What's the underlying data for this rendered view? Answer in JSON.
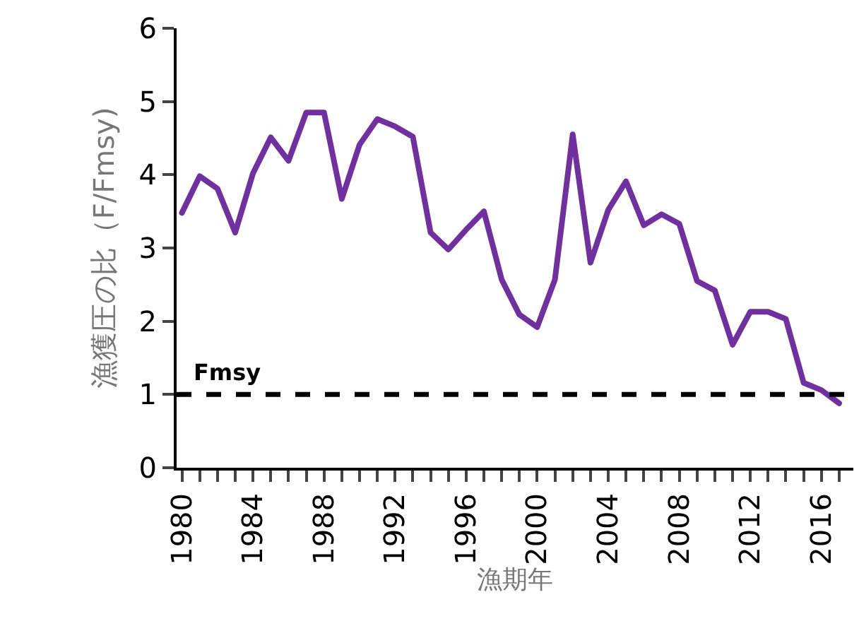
{
  "chart_data": {
    "type": "line",
    "xlabel": "漁期年",
    "ylabel": "漁獲圧の比（F/Fmsy)",
    "x": [
      1980,
      1981,
      1982,
      1983,
      1984,
      1985,
      1986,
      1987,
      1988,
      1989,
      1990,
      1991,
      1992,
      1993,
      1994,
      1995,
      1996,
      1997,
      1998,
      1999,
      2000,
      2001,
      2002,
      2003,
      2004,
      2005,
      2006,
      2007,
      2008,
      2009,
      2010,
      2011,
      2012,
      2013,
      2014,
      2015,
      2016,
      2017
    ],
    "series": [
      {
        "color": "#7030a0",
        "values": [
          3.48,
          3.98,
          3.81,
          3.21,
          4.02,
          4.51,
          4.19,
          4.85,
          4.85,
          3.67,
          4.41,
          4.76,
          4.66,
          4.52,
          3.21,
          2.98,
          3.25,
          3.5,
          2.57,
          2.09,
          1.92,
          2.57,
          4.55,
          2.8,
          3.52,
          3.91,
          3.31,
          3.46,
          3.33,
          2.55,
          2.42,
          1.68,
          2.13,
          2.13,
          2.03,
          1.16,
          1.06,
          0.88
        ]
      }
    ],
    "xlim": [
      1979.7,
      2017.8
    ],
    "ylim": [
      0,
      6
    ],
    "yticks": [
      0,
      1,
      2,
      3,
      4,
      5,
      6
    ],
    "xticks": [
      1980,
      {
        "value": 1981,
        "label": null
      },
      {
        "value": 1982,
        "label": null
      },
      {
        "value": 1983,
        "label": null
      },
      1984,
      {
        "value": 1985,
        "label": null
      },
      {
        "value": 1986,
        "label": null
      },
      {
        "value": 1987,
        "label": null
      },
      1988,
      {
        "value": 1989,
        "label": null
      },
      {
        "value": 1990,
        "label": null
      },
      {
        "value": 1991,
        "label": null
      },
      1992,
      {
        "value": 1993,
        "label": null
      },
      {
        "value": 1994,
        "label": null
      },
      {
        "value": 1995,
        "label": null
      },
      1996,
      {
        "value": 1997,
        "label": null
      },
      {
        "value": 1998,
        "label": null
      },
      {
        "value": 1999,
        "label": null
      },
      2000,
      {
        "value": 2001,
        "label": null
      },
      {
        "value": 2002,
        "label": null
      },
      {
        "value": 2003,
        "label": null
      },
      2004,
      {
        "value": 2005,
        "label": null
      },
      {
        "value": 2006,
        "label": null
      },
      {
        "value": 2007,
        "label": null
      },
      2008,
      {
        "value": 2009,
        "label": null
      },
      {
        "value": 2010,
        "label": null
      },
      {
        "value": 2011,
        "label": null
      },
      2012,
      {
        "value": 2013,
        "label": null
      },
      {
        "value": 2014,
        "label": null
      },
      {
        "value": 2015,
        "label": null
      },
      2016,
      {
        "value": 2017,
        "label": null
      }
    ],
    "ref_lines": [
      {
        "axis": "y",
        "value": 1,
        "label": "Fmsy",
        "color": "#000000",
        "line_style": "dashed"
      }
    ],
    "grid": false,
    "legend": false,
    "marker": "none",
    "line_style": "solid"
  }
}
